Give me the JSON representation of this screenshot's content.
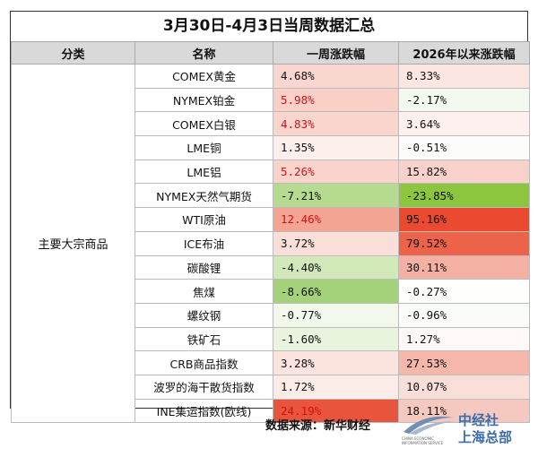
{
  "title": "3月30日-4月3日当周数据汇总",
  "headers": {
    "category": "分类",
    "name": "名称",
    "weekly": "一周涨跌幅",
    "ytd": "2026年以来涨跌幅"
  },
  "category": "主要大宗商品",
  "rows": [
    {
      "name": "COMEX黄金",
      "weekly": "4.68%",
      "ytd": "8.33%",
      "weekly_bg": "#f9d6d0",
      "ytd_bg": "#fbe6e2",
      "weekly_red": false
    },
    {
      "name": "NYMEX铂金",
      "weekly": "5.98%",
      "ytd": "-2.17%",
      "weekly_bg": "#f8d0c8",
      "ytd_bg": "#f4f9ef",
      "weekly_red": true
    },
    {
      "name": "COMEX白银",
      "weekly": "4.83%",
      "ytd": "3.64%",
      "weekly_bg": "#f9d5ce",
      "ytd_bg": "#fdf0ee",
      "weekly_red": true
    },
    {
      "name": "LME铜",
      "weekly": "1.35%",
      "ytd": "-0.51%",
      "weekly_bg": "#fdefeb",
      "ytd_bg": "#fcfdfa",
      "weekly_red": false
    },
    {
      "name": "LME铝",
      "weekly": "5.26%",
      "ytd": "15.82%",
      "weekly_bg": "#f9d3cc",
      "ytd_bg": "#f7d1ca",
      "weekly_red": true
    },
    {
      "name": "NYMEX天然气期货",
      "weekly": "-7.21%",
      "ytd": "-23.85%",
      "weekly_bg": "#b6da8f",
      "ytd_bg": "#8cc63f",
      "weekly_red": false
    },
    {
      "name": "WTI原油",
      "weekly": "12.46%",
      "ytd": "95.16%",
      "weekly_bg": "#f3a493",
      "ytd_bg": "#ea4a2f",
      "weekly_red": true
    },
    {
      "name": "ICE布油",
      "weekly": "3.72%",
      "ytd": "79.52%",
      "weekly_bg": "#fadfd9",
      "ytd_bg": "#ec6349",
      "weekly_red": false
    },
    {
      "name": "碳酸锂",
      "weekly": "-4.40%",
      "ytd": "30.11%",
      "weekly_bg": "#d1e8b8",
      "ytd_bg": "#f3b0a3",
      "weekly_red": false
    },
    {
      "name": "焦煤",
      "weekly": "-8.66%",
      "ytd": "-0.27%",
      "weekly_bg": "#a4d27a",
      "ytd_bg": "#fefefd",
      "weekly_red": false
    },
    {
      "name": "螺纹钢",
      "weekly": "-0.77%",
      "ytd": "-0.96%",
      "weekly_bg": "#f2f8ec",
      "ytd_bg": "#fafcf7",
      "weekly_red": false
    },
    {
      "name": "铁矿石",
      "weekly": "-1.60%",
      "ytd": "1.27%",
      "weekly_bg": "#e9f4df",
      "ytd_bg": "#fef9f8",
      "weekly_red": false
    },
    {
      "name": "CRB商品指数",
      "weekly": "3.28%",
      "ytd": "27.53%",
      "weekly_bg": "#fbe3de",
      "ytd_bg": "#f4b7aa",
      "weekly_red": false
    },
    {
      "name": "波罗的海干散货指数",
      "weekly": "1.72%",
      "ytd": "10.07%",
      "weekly_bg": "#fcece8",
      "ytd_bg": "#fadfd9",
      "weekly_red": false
    },
    {
      "name": "INE集运指数(欧线)",
      "weekly": "24.19%",
      "ytd": "18.11%",
      "weekly_bg": "#e8553c",
      "ytd_bg": "#f6c9c0",
      "weekly_red": true
    }
  ],
  "source": "数据来源：新华财经",
  "logo": {
    "name_line1": "中经社",
    "name_line2": "上海总部",
    "sub": "CHINA ECONOMIC INFORMATION SERVICE"
  }
}
